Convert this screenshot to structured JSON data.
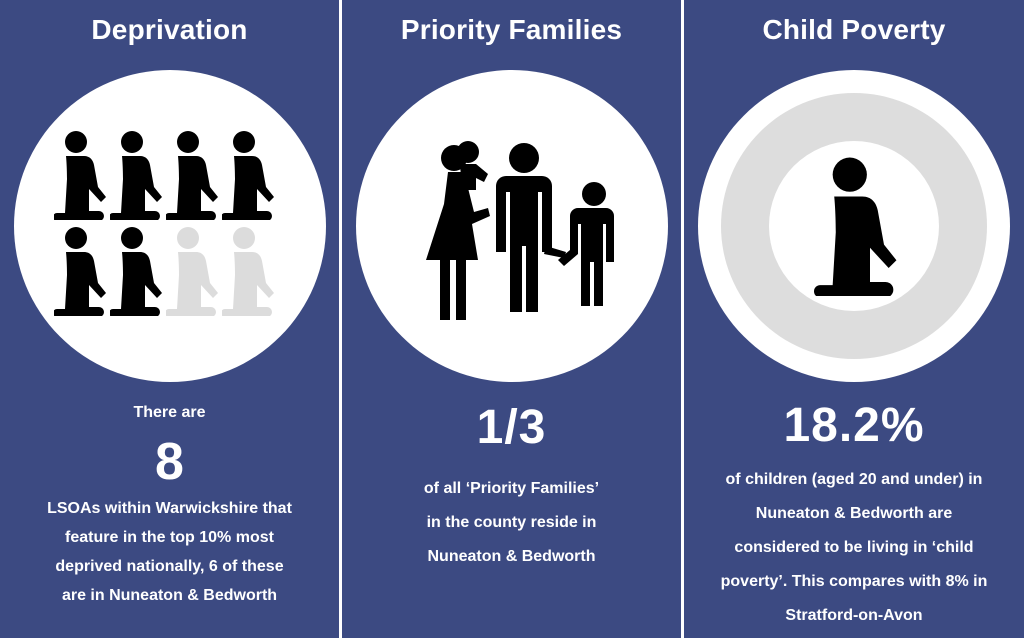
{
  "panels": [
    {
      "title": "Deprivation",
      "pre_text": "There are",
      "number": "8",
      "description_lines": [
        "LSOAs within Warwickshire that",
        "feature in the top 10% most",
        "deprived nationally, 6 of these",
        "are in Nuneaton & Bedworth"
      ],
      "icon": "kneeling-child-icon",
      "icons_total": 8,
      "icons_highlighted": 6,
      "colors": {
        "highlight": "#000000",
        "muted": "#dcdcdc"
      }
    },
    {
      "title": "Priority Families",
      "number": "1/3",
      "description_lines": [
        "of all ‘Priority Families’",
        "in the county reside in",
        "Nuneaton & Bedworth"
      ],
      "icon": "family-icon"
    },
    {
      "title": "Child Poverty",
      "number": "18.2%",
      "description_lines": [
        "of children (aged 20 and under) in",
        "Nuneaton & Bedworth are",
        "considered to be living in ‘child",
        "poverty’. This compares with 8% in",
        "Stratford-on-Avon"
      ],
      "icon": "kneeling-child-icon",
      "ring_value": 0.182
    }
  ],
  "colors": {
    "panel_background": "#3c4a82",
    "text": "#ffffff",
    "circle": "#ffffff",
    "ring": "#dddddd"
  }
}
